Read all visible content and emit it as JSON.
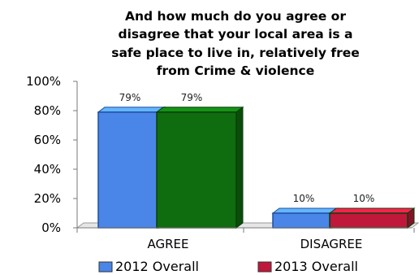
{
  "chart_data": {
    "type": "bar",
    "title_lines": [
      "And how much do you agree or",
      "disagree that your local area is a",
      "safe place to live in, relatively free",
      "from Crime & violence"
    ],
    "categories": [
      "AGREE",
      "DISAGREE"
    ],
    "series": [
      {
        "name": "2012 Overall",
        "values": [
          79,
          10
        ],
        "labels": [
          "79%",
          "10%"
        ],
        "color": "#4a86e8",
        "edge": "#1f4f9e"
      },
      {
        "name": "2013 Overall",
        "values": [
          79,
          10
        ],
        "labels": [
          "79%",
          "10%"
        ],
        "color": "#0f6d0f",
        "edge": "#083f08",
        "alt_colors": [
          "#0f6d0f",
          "#c0183a"
        ]
      }
    ],
    "ylim": [
      0,
      100
    ],
    "yticks": [
      0,
      20,
      40,
      60,
      80,
      100
    ],
    "ytick_labels": [
      "0%",
      "20%",
      "40%",
      "60%",
      "80%",
      "100%"
    ],
    "legend_position": "bottom",
    "grid": false,
    "three_d": true
  }
}
